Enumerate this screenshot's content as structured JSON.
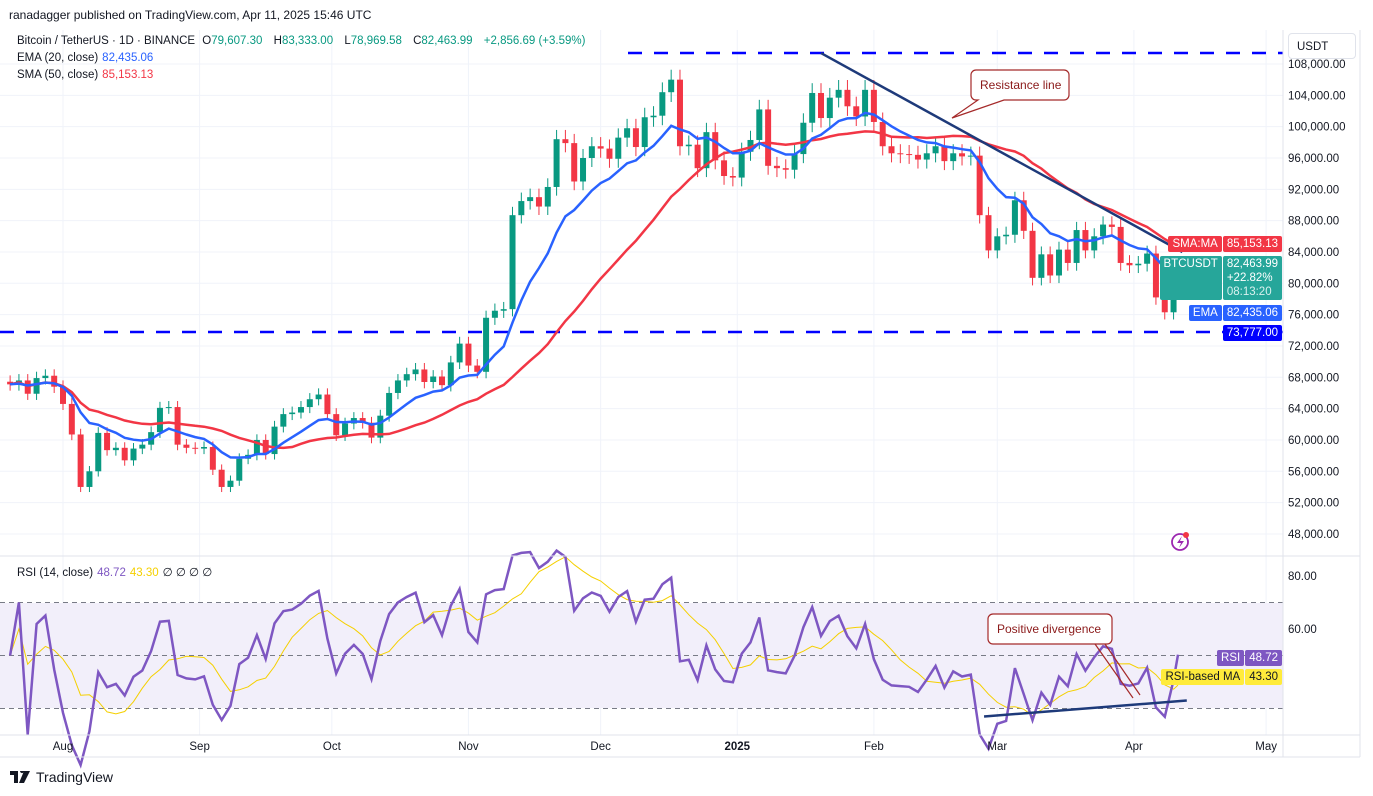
{
  "header": {
    "published": "ranadagger published on TradingView.com, Apr 11, 2025 15:46 UTC"
  },
  "legend": {
    "symbol": "Bitcoin / TetherUS · 1D · BINANCE",
    "o_label": "O",
    "o": "79,607.30",
    "h_label": "H",
    "h": "83,333.00",
    "l_label": "L",
    "l": "78,969.58",
    "c_label": "C",
    "c": "82,463.99",
    "change": "+2,856.69 (+3.59%)",
    "ema": "EMA (20, close)",
    "ema_val": "82,435.06",
    "sma": "SMA (50, close)",
    "sma_val": "85,153.13",
    "rsi": "RSI (14, close)",
    "rsi_val": "48.72",
    "rsi_ma_val": "43.30",
    "rsi_extra": "∅ ∅ ∅ ∅"
  },
  "price_axis": {
    "unit": "USDT",
    "ticks": [
      "108,000.00",
      "104,000.00",
      "100,000.00",
      "96,000.00",
      "92,000.00",
      "88,000.00",
      "84,000.00",
      "80,000.00",
      "76,000.00",
      "72,000.00",
      "68,000.00",
      "64,000.00",
      "60,000.00",
      "56,000.00",
      "52,000.00",
      "48,000.00"
    ]
  },
  "rsi_axis": {
    "ticks": [
      "80.00",
      "60.00"
    ]
  },
  "time_axis": {
    "ticks": [
      {
        "label": "Aug",
        "date": "2024-08-01"
      },
      {
        "label": "Sep",
        "date": "2024-09-01"
      },
      {
        "label": "Oct",
        "date": "2024-10-01"
      },
      {
        "label": "Nov",
        "date": "2024-11-01"
      },
      {
        "label": "Dec",
        "date": "2024-12-01"
      },
      {
        "label": "2025",
        "date": "2025-01-01"
      },
      {
        "label": "Feb",
        "date": "2025-02-01"
      },
      {
        "label": "Mar",
        "date": "2025-03-01"
      },
      {
        "label": "Apr",
        "date": "2025-04-01"
      },
      {
        "label": "May",
        "date": "2025-05-01"
      }
    ]
  },
  "tags": {
    "sma_label": "SMA:MA",
    "sma_value": "85,153.13",
    "sym_label": "BTCUSDT",
    "sym_value": "82,463.99",
    "sym_pct": "+22.82%",
    "sym_timer": "08:13:20",
    "ema_label": "EMA",
    "ema_value": "82,435.06",
    "support_value": "73,777.00",
    "rsi_label": "RSI",
    "rsi_value": "48.72",
    "rsi_ma_label": "RSI-based MA",
    "rsi_ma_value": "43.30"
  },
  "annotations": {
    "resistance": "Resistance line",
    "divergence": "Positive divergence"
  },
  "footer": {
    "brand": "TradingView"
  },
  "colors": {
    "up": "#089981",
    "down": "#f23645",
    "ema": "#2962ff",
    "sma": "#f23645",
    "rsi": "#7e57c2",
    "rsi_ma": "#f5d000",
    "levels": "#0000ff",
    "trend": "#1e3a7a",
    "annotation": "#a52a2a"
  },
  "chart_data": {
    "type": "candlestick",
    "symbol": "BTCUSDT",
    "interval": "1D",
    "ylim": [
      46000,
      111000
    ],
    "horizontal_levels": [
      109400,
      73777
    ],
    "resistance_trendline": [
      [
        "2025-01-20",
        109400
      ],
      [
        "2025-04-12",
        84000
      ]
    ],
    "rsi_trendline": [
      [
        "2025-02-26",
        27
      ],
      [
        "2025-04-13",
        33
      ]
    ],
    "rsi_levels": [
      70,
      50,
      30
    ],
    "closes": [
      [
        "2024-07-20",
        67100
      ],
      [
        "2024-07-22",
        67600
      ],
      [
        "2024-07-24",
        65900
      ],
      [
        "2024-07-26",
        67900
      ],
      [
        "2024-07-28",
        68200
      ],
      [
        "2024-07-30",
        66800
      ],
      [
        "2024-08-01",
        64600
      ],
      [
        "2024-08-03",
        60700
      ],
      [
        "2024-08-05",
        54000
      ],
      [
        "2024-08-07",
        56000
      ],
      [
        "2024-08-09",
        60900
      ],
      [
        "2024-08-11",
        58700
      ],
      [
        "2024-08-13",
        59000
      ],
      [
        "2024-08-15",
        57400
      ],
      [
        "2024-08-17",
        58900
      ],
      [
        "2024-08-19",
        59400
      ],
      [
        "2024-08-21",
        61000
      ],
      [
        "2024-08-23",
        64100
      ],
      [
        "2024-08-25",
        64200
      ],
      [
        "2024-08-27",
        59400
      ],
      [
        "2024-08-29",
        59000
      ],
      [
        "2024-08-31",
        58900
      ],
      [
        "2024-09-02",
        59100
      ],
      [
        "2024-09-04",
        56200
      ],
      [
        "2024-09-06",
        54000
      ],
      [
        "2024-09-08",
        54800
      ],
      [
        "2024-09-10",
        57600
      ],
      [
        "2024-09-12",
        58100
      ],
      [
        "2024-09-14",
        60000
      ],
      [
        "2024-09-16",
        58200
      ],
      [
        "2024-09-18",
        61700
      ],
      [
        "2024-09-20",
        63300
      ],
      [
        "2024-09-22",
        63500
      ],
      [
        "2024-09-24",
        64200
      ],
      [
        "2024-09-26",
        65200
      ],
      [
        "2024-09-28",
        65800
      ],
      [
        "2024-09-30",
        63300
      ],
      [
        "2024-10-02",
        60600
      ],
      [
        "2024-10-04",
        62100
      ],
      [
        "2024-10-06",
        62800
      ],
      [
        "2024-10-08",
        62200
      ],
      [
        "2024-10-10",
        60300
      ],
      [
        "2024-10-12",
        63100
      ],
      [
        "2024-10-14",
        66000
      ],
      [
        "2024-10-16",
        67600
      ],
      [
        "2024-10-18",
        68400
      ],
      [
        "2024-10-20",
        69000
      ],
      [
        "2024-10-22",
        67400
      ],
      [
        "2024-10-24",
        68100
      ],
      [
        "2024-10-26",
        67000
      ],
      [
        "2024-10-28",
        69900
      ],
      [
        "2024-10-30",
        72300
      ],
      [
        "2024-11-01",
        69500
      ],
      [
        "2024-11-03",
        68700
      ],
      [
        "2024-11-05",
        75600
      ],
      [
        "2024-11-07",
        76500
      ],
      [
        "2024-11-09",
        76700
      ],
      [
        "2024-11-11",
        88700
      ],
      [
        "2024-11-13",
        90500
      ],
      [
        "2024-11-15",
        91000
      ],
      [
        "2024-11-17",
        89800
      ],
      [
        "2024-11-19",
        92300
      ],
      [
        "2024-11-21",
        98400
      ],
      [
        "2024-11-23",
        97900
      ],
      [
        "2024-11-25",
        93000
      ],
      [
        "2024-11-27",
        96000
      ],
      [
        "2024-11-29",
        97500
      ],
      [
        "2024-12-01",
        97200
      ],
      [
        "2024-12-03",
        95900
      ],
      [
        "2024-12-05",
        98600
      ],
      [
        "2024-12-07",
        99800
      ],
      [
        "2024-12-09",
        97400
      ],
      [
        "2024-12-11",
        101200
      ],
      [
        "2024-12-13",
        101400
      ],
      [
        "2024-12-15",
        104400
      ],
      [
        "2024-12-17",
        106000
      ],
      [
        "2024-12-19",
        97500
      ],
      [
        "2024-12-21",
        97700
      ],
      [
        "2024-12-23",
        94700
      ],
      [
        "2024-12-25",
        99300
      ],
      [
        "2024-12-27",
        95700
      ],
      [
        "2024-12-29",
        93700
      ],
      [
        "2024-12-31",
        93500
      ],
      [
        "2025-01-02",
        96800
      ],
      [
        "2025-01-04",
        98300
      ],
      [
        "2025-01-06",
        102200
      ],
      [
        "2025-01-08",
        95000
      ],
      [
        "2025-01-10",
        94700
      ],
      [
        "2025-01-12",
        94500
      ],
      [
        "2025-01-14",
        96500
      ],
      [
        "2025-01-16",
        100500
      ],
      [
        "2025-01-18",
        104300
      ],
      [
        "2025-01-20",
        101100
      ],
      [
        "2025-01-22",
        103700
      ],
      [
        "2025-01-24",
        104700
      ],
      [
        "2025-01-26",
        102600
      ],
      [
        "2025-01-28",
        101300
      ],
      [
        "2025-01-30",
        104700
      ],
      [
        "2025-02-01",
        100600
      ],
      [
        "2025-02-03",
        97500
      ],
      [
        "2025-02-05",
        96600
      ],
      [
        "2025-02-07",
        96500
      ],
      [
        "2025-02-09",
        96400
      ],
      [
        "2025-02-11",
        95800
      ],
      [
        "2025-02-13",
        96600
      ],
      [
        "2025-02-15",
        97500
      ],
      [
        "2025-02-17",
        95600
      ],
      [
        "2025-02-19",
        96600
      ],
      [
        "2025-02-21",
        96200
      ],
      [
        "2025-02-23",
        96300
      ],
      [
        "2025-02-25",
        88700
      ],
      [
        "2025-02-27",
        84200
      ],
      [
        "2025-03-01",
        86000
      ],
      [
        "2025-03-03",
        86200
      ],
      [
        "2025-03-05",
        90600
      ],
      [
        "2025-03-07",
        86700
      ],
      [
        "2025-03-09",
        80700
      ],
      [
        "2025-03-11",
        83700
      ],
      [
        "2025-03-13",
        81000
      ],
      [
        "2025-03-15",
        84300
      ],
      [
        "2025-03-17",
        82600
      ],
      [
        "2025-03-19",
        86800
      ],
      [
        "2025-03-21",
        84200
      ],
      [
        "2025-03-23",
        86000
      ],
      [
        "2025-03-25",
        87500
      ],
      [
        "2025-03-27",
        87200
      ],
      [
        "2025-03-29",
        82600
      ],
      [
        "2025-03-31",
        82300
      ],
      [
        "2025-04-02",
        82500
      ],
      [
        "2025-04-04",
        83800
      ],
      [
        "2025-04-06",
        78200
      ],
      [
        "2025-04-08",
        76300
      ],
      [
        "2025-04-10",
        79607
      ],
      [
        "2025-04-11",
        82464
      ]
    ]
  }
}
